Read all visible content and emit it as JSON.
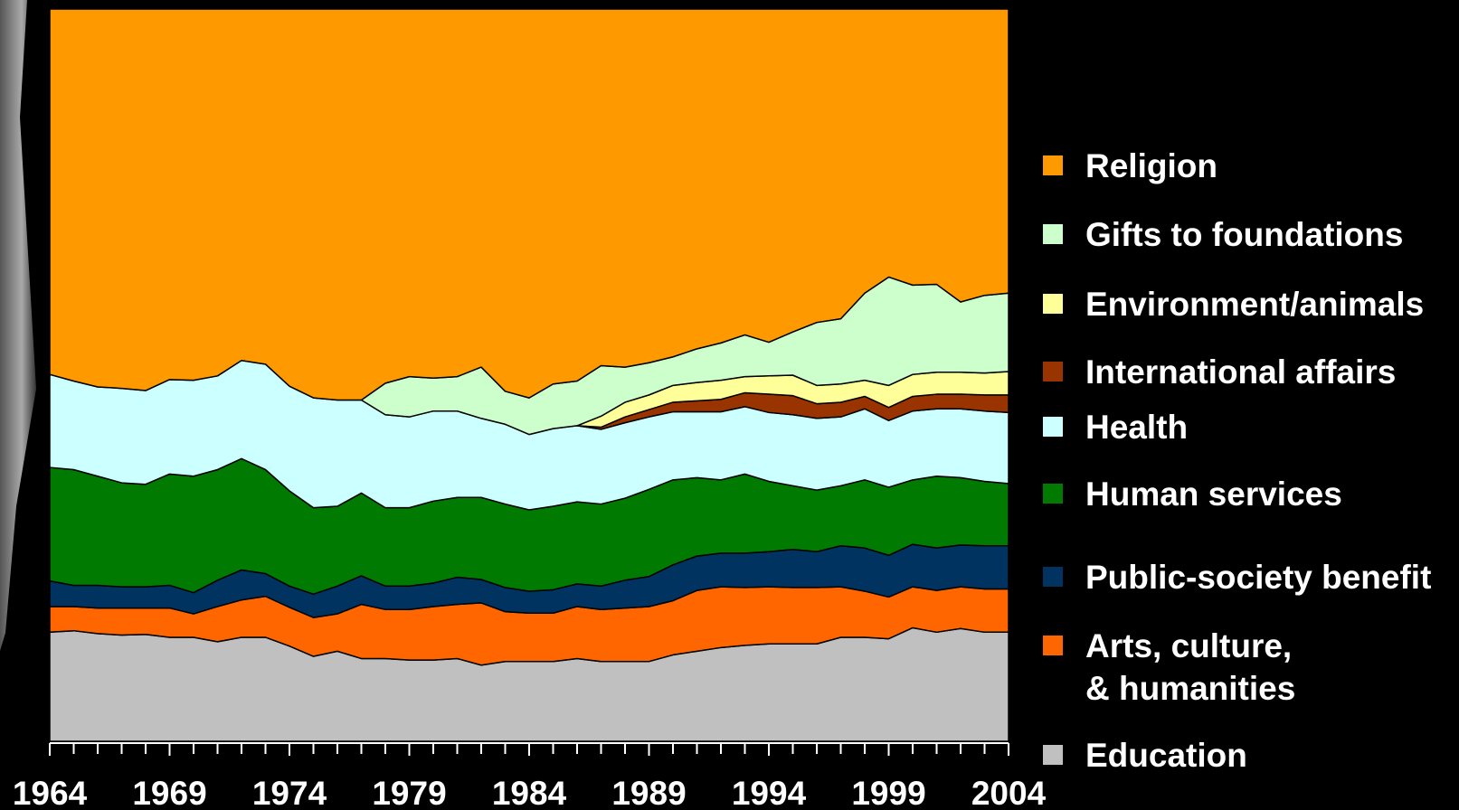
{
  "chart_data": {
    "type": "stacked-area",
    "x": [
      1964,
      1965,
      1966,
      1967,
      1968,
      1969,
      1970,
      1971,
      1972,
      1973,
      1974,
      1975,
      1976,
      1977,
      1978,
      1979,
      1980,
      1981,
      1982,
      1983,
      1984,
      1985,
      1986,
      1987,
      1988,
      1989,
      1990,
      1991,
      1992,
      1993,
      1994,
      1995,
      1996,
      1997,
      1998,
      1999,
      2000,
      2001,
      2002,
      2003,
      2004
    ],
    "xlim": [
      1964,
      2004
    ],
    "xticks": [
      1964,
      1969,
      1974,
      1979,
      1984,
      1989,
      1994,
      1999,
      2004
    ],
    "ylim": [
      0,
      100
    ],
    "series": [
      {
        "name": "Education",
        "color": "#c0c0c0",
        "values": [
          14.9,
          15.1,
          14.7,
          14.5,
          14.6,
          14.2,
          14.2,
          13.6,
          14.2,
          14.2,
          13.0,
          11.6,
          12.3,
          11.3,
          11.3,
          11.1,
          11.1,
          11.3,
          10.4,
          10.9,
          10.9,
          10.9,
          11.3,
          10.9,
          10.9,
          10.9,
          11.8,
          12.3,
          12.8,
          13.1,
          13.3,
          13.3,
          13.3,
          14.2,
          14.2,
          14.0,
          15.5,
          14.9,
          15.4,
          14.9,
          14.9
        ]
      },
      {
        "name": "Arts, culture, & humanities",
        "color": "#ff6600",
        "values": [
          3.5,
          3.3,
          3.5,
          3.7,
          3.6,
          4.0,
          3.2,
          4.8,
          5.1,
          5.6,
          5.3,
          5.3,
          5.1,
          7.4,
          6.7,
          6.9,
          7.3,
          7.4,
          8.5,
          6.8,
          6.6,
          6.6,
          7.1,
          7.1,
          7.3,
          7.5,
          7.4,
          8.3,
          8.3,
          7.9,
          7.8,
          7.7,
          7.7,
          6.9,
          6.3,
          5.7,
          5.6,
          5.7,
          5.7,
          5.9,
          5.9
        ]
      },
      {
        "name": "Public-society benefit",
        "color": "#00335f",
        "values": [
          3.5,
          2.9,
          3.1,
          2.9,
          2.9,
          3.1,
          2.9,
          3.6,
          4.1,
          3.1,
          2.9,
          3.2,
          3.8,
          3.9,
          3.2,
          3.2,
          3.2,
          3.7,
          3.2,
          3.3,
          3.0,
          3.2,
          3.1,
          3.2,
          3.8,
          4.1,
          4.9,
          4.7,
          4.6,
          4.7,
          4.8,
          5.2,
          4.9,
          5.6,
          5.9,
          5.7,
          5.8,
          5.8,
          5.7,
          5.9,
          5.9
        ]
      },
      {
        "name": "Human services",
        "color": "#007a00",
        "values": [
          15.5,
          15.8,
          14.9,
          14.2,
          14.0,
          15.2,
          15.9,
          15.1,
          15.2,
          14.2,
          13.0,
          11.8,
          10.9,
          11.3,
          10.7,
          10.7,
          11.2,
          10.9,
          11.2,
          11.4,
          11.1,
          11.4,
          11.2,
          11.2,
          11.2,
          11.9,
          11.6,
          10.7,
          10.0,
          10.8,
          9.6,
          8.7,
          8.4,
          8.2,
          9.3,
          9.3,
          8.8,
          9.8,
          9.2,
          8.8,
          8.5
        ]
      },
      {
        "name": "Health",
        "color": "#ccffff",
        "values": [
          12.7,
          12.1,
          12.2,
          12.9,
          12.8,
          12.9,
          13.1,
          12.8,
          13.4,
          14.4,
          14.3,
          15.0,
          14.5,
          12.7,
          12.7,
          12.4,
          12.3,
          11.8,
          10.8,
          10.9,
          10.3,
          10.6,
          10.4,
          10.2,
          10.3,
          9.9,
          9.3,
          9.0,
          9.3,
          9.2,
          9.4,
          9.7,
          9.8,
          9.4,
          9.7,
          9.1,
          9.4,
          9.2,
          9.4,
          9.6,
          9.7
        ]
      },
      {
        "name": "International affairs",
        "color": "#993300",
        "values": [
          null,
          null,
          null,
          null,
          null,
          null,
          null,
          null,
          null,
          null,
          null,
          null,
          null,
          null,
          null,
          null,
          null,
          null,
          null,
          null,
          null,
          null,
          0,
          0.3,
          0.8,
          1.0,
          1.3,
          1.5,
          1.7,
          1.9,
          2.5,
          2.6,
          2.0,
          2.0,
          1.7,
          1.8,
          2.0,
          2.0,
          2.0,
          2.2,
          2.4
        ]
      },
      {
        "name": "Environment/animals",
        "color": "#ffff99",
        "values": [
          null,
          null,
          null,
          null,
          null,
          null,
          null,
          null,
          null,
          null,
          null,
          null,
          null,
          null,
          null,
          null,
          null,
          null,
          null,
          null,
          null,
          null,
          0,
          1.5,
          2.0,
          2.0,
          2.3,
          2.5,
          2.6,
          2.2,
          2.5,
          2.8,
          2.5,
          2.5,
          2.2,
          3.0,
          3.0,
          3.0,
          3.0,
          3.0,
          3.2
        ]
      },
      {
        "name": "Gifts to foundations",
        "color": "#ccffcc",
        "values": [
          null,
          null,
          null,
          null,
          null,
          null,
          null,
          null,
          null,
          null,
          null,
          null,
          null,
          0,
          4.3,
          5.5,
          4.5,
          4.7,
          7.0,
          4.5,
          5.0,
          6.1,
          6.1,
          6.9,
          4.8,
          4.4,
          3.9,
          4.6,
          5.1,
          5.7,
          4.6,
          5.9,
          8.6,
          8.9,
          11.9,
          14.8,
          12.2,
          12.0,
          9.6,
          10.6,
          10.7
        ]
      },
      {
        "name": "Religion",
        "color": "#ff9900",
        "values": [
          49.9,
          50.8,
          51.6,
          51.8,
          52.1,
          50.6,
          50.7,
          50.1,
          48.0,
          48.5,
          51.5,
          53.1,
          53.4,
          53.4,
          51.1,
          50.2,
          50.4,
          50.2,
          48.9,
          52.2,
          53.1,
          51.2,
          50.8,
          48.7,
          48.9,
          48.3,
          47.5,
          46.4,
          45.6,
          44.5,
          45.5,
          44.1,
          42.8,
          42.3,
          38.8,
          36.6,
          37.7,
          37.6,
          40.0,
          39.1,
          38.8
        ]
      }
    ]
  }
}
